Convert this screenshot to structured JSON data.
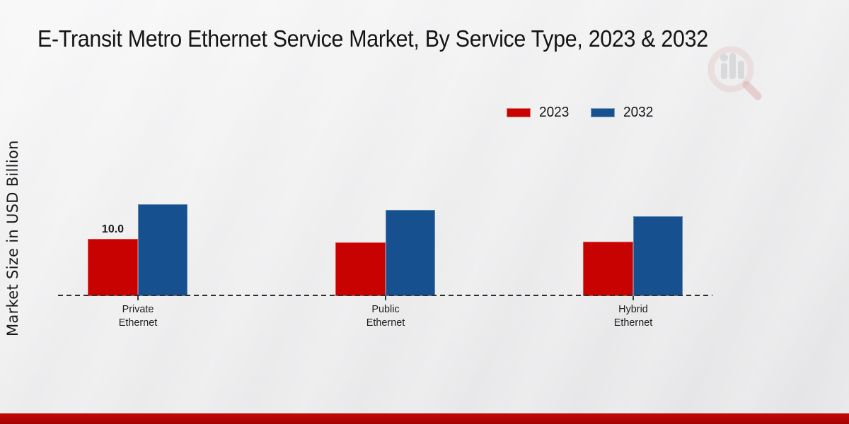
{
  "page": {
    "footer_color": "#b30303",
    "background_top": "#f8f8f9",
    "background_bottom": "#e4e4e6"
  },
  "chart_data": {
    "type": "bar",
    "title": "E-Transit Metro Ethernet Service Market, By Service Type, 2023 & 2032",
    "ylabel": "Market Size in USD Billion",
    "xlabel": "",
    "categories": [
      "Private Ethernet",
      "Public Ethernet",
      "Hybrid Ethernet"
    ],
    "series": [
      {
        "name": "2023",
        "color": "#c80201",
        "values": [
          10.0,
          9.4,
          9.5
        ]
      },
      {
        "name": "2032",
        "color": "#17508e",
        "values": [
          16.0,
          15.0,
          14.0
        ]
      }
    ],
    "data_labels": [
      {
        "series": "2023",
        "category": "Private Ethernet",
        "text": "10.0"
      }
    ],
    "legend_position": "top-right",
    "legend_entries": [
      "2023",
      "2032"
    ],
    "grid": false,
    "baseline_style": "dashed",
    "ylim": [
      0,
      20
    ]
  }
}
